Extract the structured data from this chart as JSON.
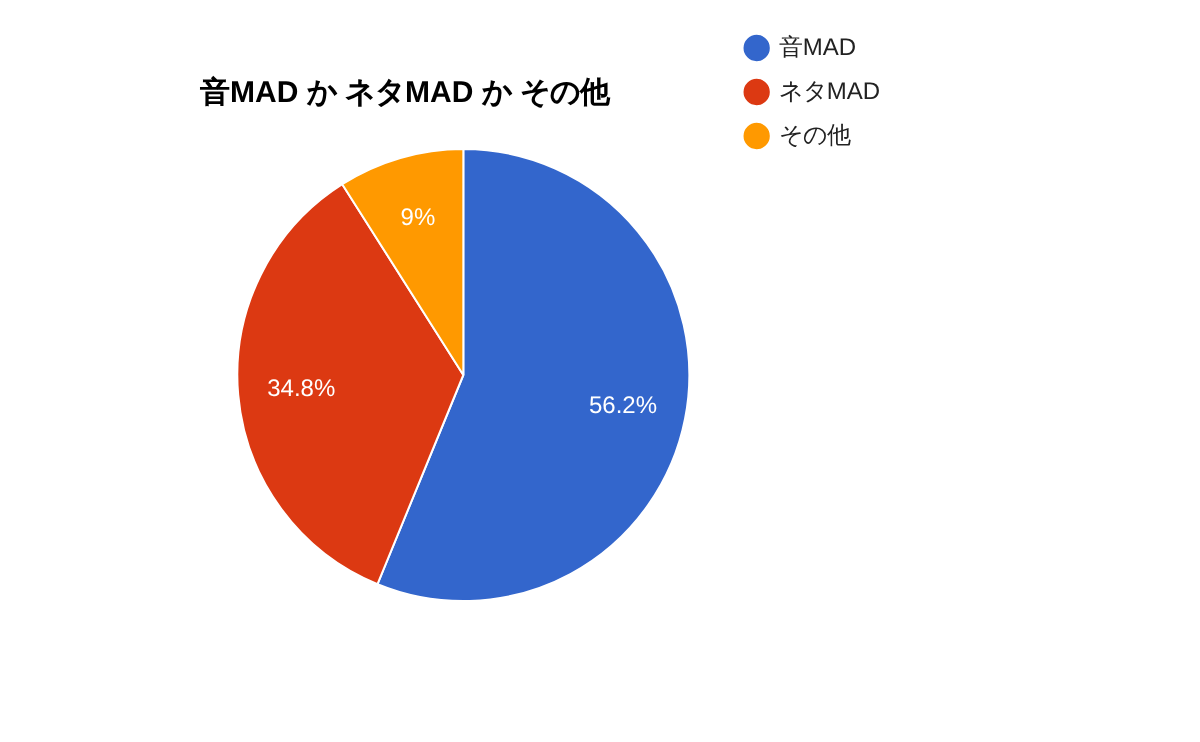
{
  "chart_data": {
    "type": "pie",
    "title": "音MAD か ネタMAD か その他",
    "categories": [
      "音MAD",
      "ネタMAD",
      "その他"
    ],
    "values": [
      56.2,
      34.8,
      9
    ],
    "colors": [
      "#3366cc",
      "#dc3912",
      "#ff9900"
    ],
    "value_labels": [
      "56.2%",
      "34.8%",
      "9%"
    ],
    "legend": "top right"
  }
}
